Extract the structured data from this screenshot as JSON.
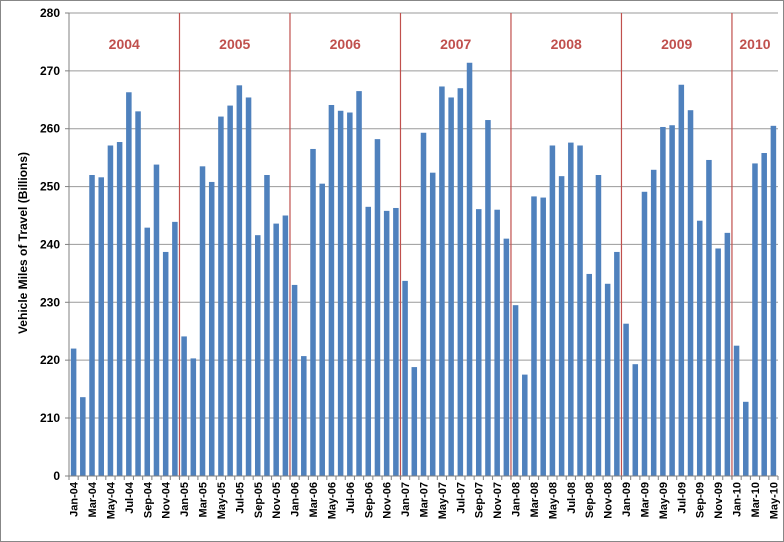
{
  "chart_data": {
    "type": "bar",
    "ylabel": "Vehicle Miles of Travel (Billions)",
    "ylim": [
      0,
      280
    ],
    "y_ticks": [
      0,
      210,
      220,
      230,
      240,
      250,
      260,
      270,
      280
    ],
    "y_tick_labels": [
      "0",
      "210",
      "220",
      "230",
      "240",
      "250",
      "260",
      "270",
      "280"
    ],
    "y_axis_note": "broken axis: 0 at bottom, 210-280 above",
    "grid": true,
    "bar_color": "#4f81bd",
    "year_divider_color": "#c0504d",
    "categories": [
      "Jan-04",
      "Feb-04",
      "Mar-04",
      "Apr-04",
      "May-04",
      "Jun-04",
      "Jul-04",
      "Aug-04",
      "Sep-04",
      "Oct-04",
      "Nov-04",
      "Dec-04",
      "Jan-05",
      "Feb-05",
      "Mar-05",
      "Apr-05",
      "May-05",
      "Jun-05",
      "Jul-05",
      "Aug-05",
      "Sep-05",
      "Oct-05",
      "Nov-05",
      "Dec-05",
      "Jan-06",
      "Feb-06",
      "Mar-06",
      "Apr-06",
      "May-06",
      "Jun-06",
      "Jul-06",
      "Aug-06",
      "Sep-06",
      "Oct-06",
      "Nov-06",
      "Dec-06",
      "Jan-07",
      "Feb-07",
      "Mar-07",
      "Apr-07",
      "May-07",
      "Jun-07",
      "Jul-07",
      "Aug-07",
      "Sep-07",
      "Oct-07",
      "Nov-07",
      "Dec-07",
      "Jan-08",
      "Feb-08",
      "Mar-08",
      "Apr-08",
      "May-08",
      "Jun-08",
      "Jul-08",
      "Aug-08",
      "Sep-08",
      "Oct-08",
      "Nov-08",
      "Dec-08",
      "Jan-09",
      "Feb-09",
      "Mar-09",
      "Apr-09",
      "May-09",
      "Jun-09",
      "Jul-09",
      "Aug-09",
      "Sep-09",
      "Oct-09",
      "Nov-09",
      "Dec-09",
      "Jan-10",
      "Feb-10",
      "Mar-10",
      "Apr-10",
      "May-10"
    ],
    "x_tick_labels": [
      "Jan-04",
      "Mar-04",
      "May-04",
      "Jul-04",
      "Sep-04",
      "Nov-04",
      "Jan-05",
      "Mar-05",
      "May-05",
      "Jul-05",
      "Sep-05",
      "Nov-05",
      "Jan-06",
      "Mar-06",
      "May-06",
      "Jul-06",
      "Sep-06",
      "Nov-06",
      "Jan-07",
      "Mar-07",
      "May-07",
      "Jul-07",
      "Sep-07",
      "Nov-07",
      "Jan-08",
      "Mar-08",
      "May-08",
      "Jul-08",
      "Sep-08",
      "Nov-08",
      "Jan-09",
      "Mar-09",
      "May-09",
      "Jul-09",
      "Sep-09",
      "Nov-09",
      "Jan-10",
      "Mar-10",
      "May-10"
    ],
    "values": [
      222.0,
      213.6,
      252.0,
      251.6,
      257.1,
      257.7,
      266.3,
      263.0,
      242.9,
      253.8,
      238.7,
      243.9,
      224.1,
      220.3,
      253.5,
      250.8,
      262.1,
      264.0,
      267.5,
      265.4,
      241.6,
      252.0,
      243.6,
      245.0,
      233.0,
      220.7,
      256.5,
      250.5,
      264.1,
      263.1,
      262.8,
      266.5,
      246.5,
      258.2,
      245.8,
      246.3,
      233.7,
      218.8,
      259.3,
      252.4,
      267.3,
      265.4,
      267.0,
      271.4,
      246.1,
      261.5,
      246.0,
      241.0,
      229.5,
      217.5,
      248.3,
      248.1,
      257.1,
      251.8,
      257.6,
      257.1,
      234.9,
      252.0,
      233.2,
      238.7,
      226.3,
      219.3,
      249.1,
      252.9,
      260.3,
      260.6,
      267.6,
      263.2,
      244.1,
      254.6,
      239.3,
      242.0,
      222.5,
      212.8,
      254.0,
      255.8,
      260.5
    ],
    "year_labels": [
      "2004",
      "2005",
      "2006",
      "2007",
      "2008",
      "2009",
      "2010"
    ]
  }
}
